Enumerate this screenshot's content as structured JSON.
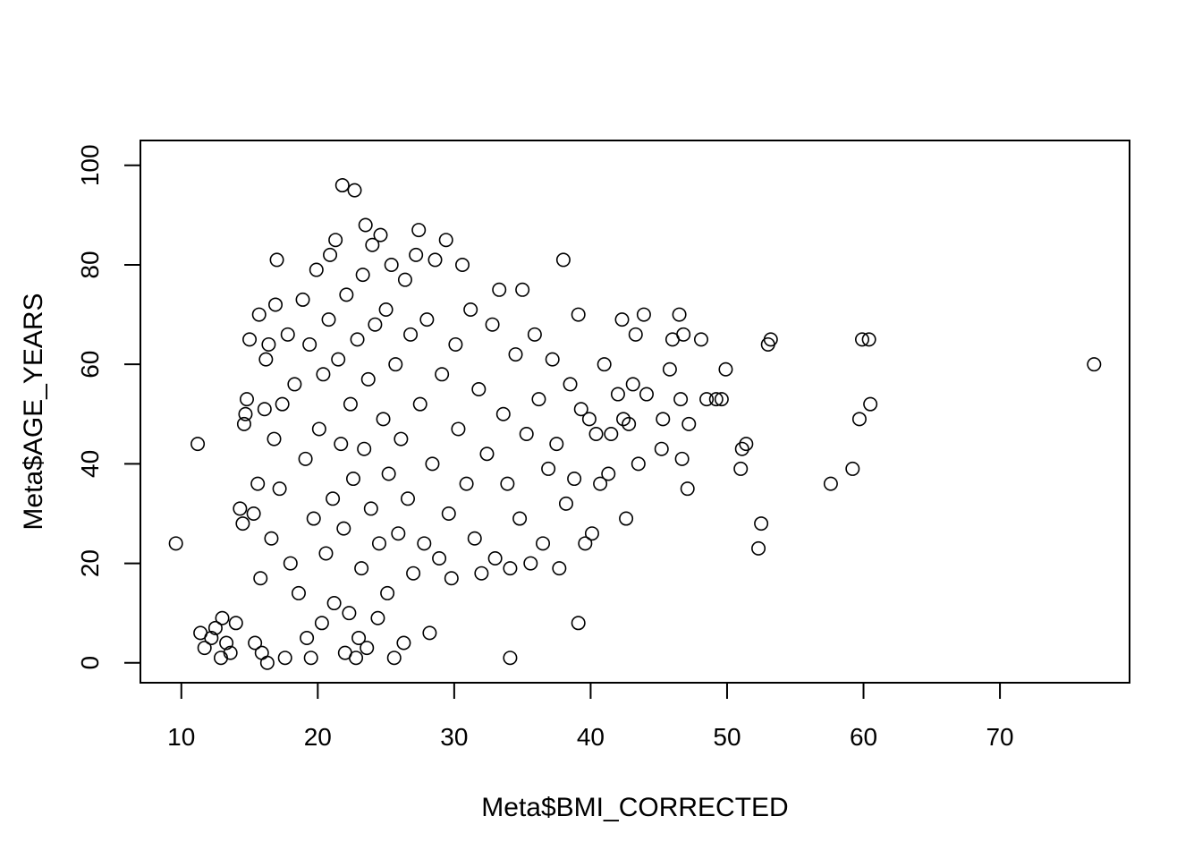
{
  "chart_data": {
    "type": "scatter",
    "title": "",
    "xlabel": "Meta$BMI_CORRECTED",
    "ylabel": "Meta$AGE_YEARS",
    "xlim": [
      7,
      79.5
    ],
    "ylim": [
      -4,
      105
    ],
    "x_ticks": [
      10,
      20,
      30,
      40,
      50,
      60,
      70
    ],
    "y_ticks": [
      0,
      20,
      40,
      60,
      80,
      100
    ],
    "x_tick_labels": [
      "10",
      "20",
      "30",
      "40",
      "50",
      "60",
      "70"
    ],
    "y_tick_labels": [
      "0",
      "20",
      "40",
      "60",
      "80",
      "100"
    ],
    "marker": "open-circle",
    "marker_color": "#000000",
    "grid": false,
    "legend": "none",
    "series": [
      {
        "values": [
          [
            9.6,
            24
          ],
          [
            11.2,
            44
          ],
          [
            11.4,
            6
          ],
          [
            11.7,
            3
          ],
          [
            12.2,
            5
          ],
          [
            12.5,
            7
          ],
          [
            12.9,
            1
          ],
          [
            13.0,
            9
          ],
          [
            13.3,
            4
          ],
          [
            13.6,
            2
          ],
          [
            14.0,
            8
          ],
          [
            14.3,
            31
          ],
          [
            14.5,
            28
          ],
          [
            14.6,
            48
          ],
          [
            14.7,
            50
          ],
          [
            14.8,
            53
          ],
          [
            15.0,
            65
          ],
          [
            15.3,
            30
          ],
          [
            15.4,
            4
          ],
          [
            15.6,
            36
          ],
          [
            15.7,
            70
          ],
          [
            15.8,
            17
          ],
          [
            15.9,
            2
          ],
          [
            16.1,
            51
          ],
          [
            16.2,
            61
          ],
          [
            16.3,
            0
          ],
          [
            16.4,
            64
          ],
          [
            16.6,
            25
          ],
          [
            16.8,
            45
          ],
          [
            16.9,
            72
          ],
          [
            17.0,
            81
          ],
          [
            17.2,
            35
          ],
          [
            17.4,
            52
          ],
          [
            17.6,
            1
          ],
          [
            17.8,
            66
          ],
          [
            18.0,
            20
          ],
          [
            18.3,
            56
          ],
          [
            18.6,
            14
          ],
          [
            18.9,
            73
          ],
          [
            19.1,
            41
          ],
          [
            19.2,
            5
          ],
          [
            19.4,
            64
          ],
          [
            19.5,
            1
          ],
          [
            19.7,
            29
          ],
          [
            19.9,
            79
          ],
          [
            20.1,
            47
          ],
          [
            20.3,
            8
          ],
          [
            20.4,
            58
          ],
          [
            20.6,
            22
          ],
          [
            20.8,
            69
          ],
          [
            20.9,
            82
          ],
          [
            21.1,
            33
          ],
          [
            21.2,
            12
          ],
          [
            21.3,
            85
          ],
          [
            21.5,
            61
          ],
          [
            21.7,
            44
          ],
          [
            21.8,
            96
          ],
          [
            21.9,
            27
          ],
          [
            22.0,
            2
          ],
          [
            22.1,
            74
          ],
          [
            22.3,
            10
          ],
          [
            22.4,
            52
          ],
          [
            22.6,
            37
          ],
          [
            22.7,
            95
          ],
          [
            22.8,
            1
          ],
          [
            22.9,
            65
          ],
          [
            23.0,
            5
          ],
          [
            23.2,
            19
          ],
          [
            23.3,
            78
          ],
          [
            23.4,
            43
          ],
          [
            23.5,
            88
          ],
          [
            23.6,
            3
          ],
          [
            23.7,
            57
          ],
          [
            23.9,
            31
          ],
          [
            24.0,
            84
          ],
          [
            24.2,
            68
          ],
          [
            24.4,
            9
          ],
          [
            24.5,
            24
          ],
          [
            24.6,
            86
          ],
          [
            24.8,
            49
          ],
          [
            25.0,
            71
          ],
          [
            25.1,
            14
          ],
          [
            25.2,
            38
          ],
          [
            25.4,
            80
          ],
          [
            25.6,
            1
          ],
          [
            25.7,
            60
          ],
          [
            25.9,
            26
          ],
          [
            26.1,
            45
          ],
          [
            26.3,
            4
          ],
          [
            26.4,
            77
          ],
          [
            26.6,
            33
          ],
          [
            26.8,
            66
          ],
          [
            27.0,
            18
          ],
          [
            27.2,
            82
          ],
          [
            27.4,
            87
          ],
          [
            27.5,
            52
          ],
          [
            27.8,
            24
          ],
          [
            28.0,
            69
          ],
          [
            28.2,
            6
          ],
          [
            28.4,
            40
          ],
          [
            28.6,
            81
          ],
          [
            28.9,
            21
          ],
          [
            29.1,
            58
          ],
          [
            29.4,
            85
          ],
          [
            29.6,
            30
          ],
          [
            29.8,
            17
          ],
          [
            30.1,
            64
          ],
          [
            30.3,
            47
          ],
          [
            30.6,
            80
          ],
          [
            30.9,
            36
          ],
          [
            31.2,
            71
          ],
          [
            31.5,
            25
          ],
          [
            31.8,
            55
          ],
          [
            32.0,
            18
          ],
          [
            32.4,
            42
          ],
          [
            32.8,
            68
          ],
          [
            33.0,
            21
          ],
          [
            33.3,
            75
          ],
          [
            33.6,
            50
          ],
          [
            33.9,
            36
          ],
          [
            34.1,
            1
          ],
          [
            34.1,
            19
          ],
          [
            34.5,
            62
          ],
          [
            34.8,
            29
          ],
          [
            35.0,
            75
          ],
          [
            35.3,
            46
          ],
          [
            35.6,
            20
          ],
          [
            35.9,
            66
          ],
          [
            36.2,
            53
          ],
          [
            36.5,
            24
          ],
          [
            36.9,
            39
          ],
          [
            37.2,
            61
          ],
          [
            37.5,
            44
          ],
          [
            37.7,
            19
          ],
          [
            38.0,
            81
          ],
          [
            38.2,
            32
          ],
          [
            38.5,
            56
          ],
          [
            38.8,
            37
          ],
          [
            39.1,
            8
          ],
          [
            39.1,
            70
          ],
          [
            39.3,
            51
          ],
          [
            39.6,
            24
          ],
          [
            39.9,
            49
          ],
          [
            40.1,
            26
          ],
          [
            40.4,
            46
          ],
          [
            40.7,
            36
          ],
          [
            41.0,
            60
          ],
          [
            41.3,
            38
          ],
          [
            41.5,
            46
          ],
          [
            42.0,
            54
          ],
          [
            42.3,
            69
          ],
          [
            42.4,
            49
          ],
          [
            42.6,
            29
          ],
          [
            42.8,
            48
          ],
          [
            43.1,
            56
          ],
          [
            43.3,
            66
          ],
          [
            43.5,
            40
          ],
          [
            43.9,
            70
          ],
          [
            44.1,
            54
          ],
          [
            45.2,
            43
          ],
          [
            45.3,
            49
          ],
          [
            45.8,
            59
          ],
          [
            46.0,
            65
          ],
          [
            46.5,
            70
          ],
          [
            46.6,
            53
          ],
          [
            46.7,
            41
          ],
          [
            46.8,
            66
          ],
          [
            47.1,
            35
          ],
          [
            47.2,
            48
          ],
          [
            48.1,
            65
          ],
          [
            48.5,
            53
          ],
          [
            49.2,
            53
          ],
          [
            49.6,
            53
          ],
          [
            49.9,
            59
          ],
          [
            51.0,
            39
          ],
          [
            51.1,
            43
          ],
          [
            51.4,
            44
          ],
          [
            52.3,
            23
          ],
          [
            52.5,
            28
          ],
          [
            53.0,
            64
          ],
          [
            53.2,
            65
          ],
          [
            57.6,
            36
          ],
          [
            59.2,
            39
          ],
          [
            59.7,
            49
          ],
          [
            59.9,
            65
          ],
          [
            60.4,
            65
          ],
          [
            60.5,
            52
          ],
          [
            76.9,
            60
          ]
        ]
      }
    ]
  }
}
